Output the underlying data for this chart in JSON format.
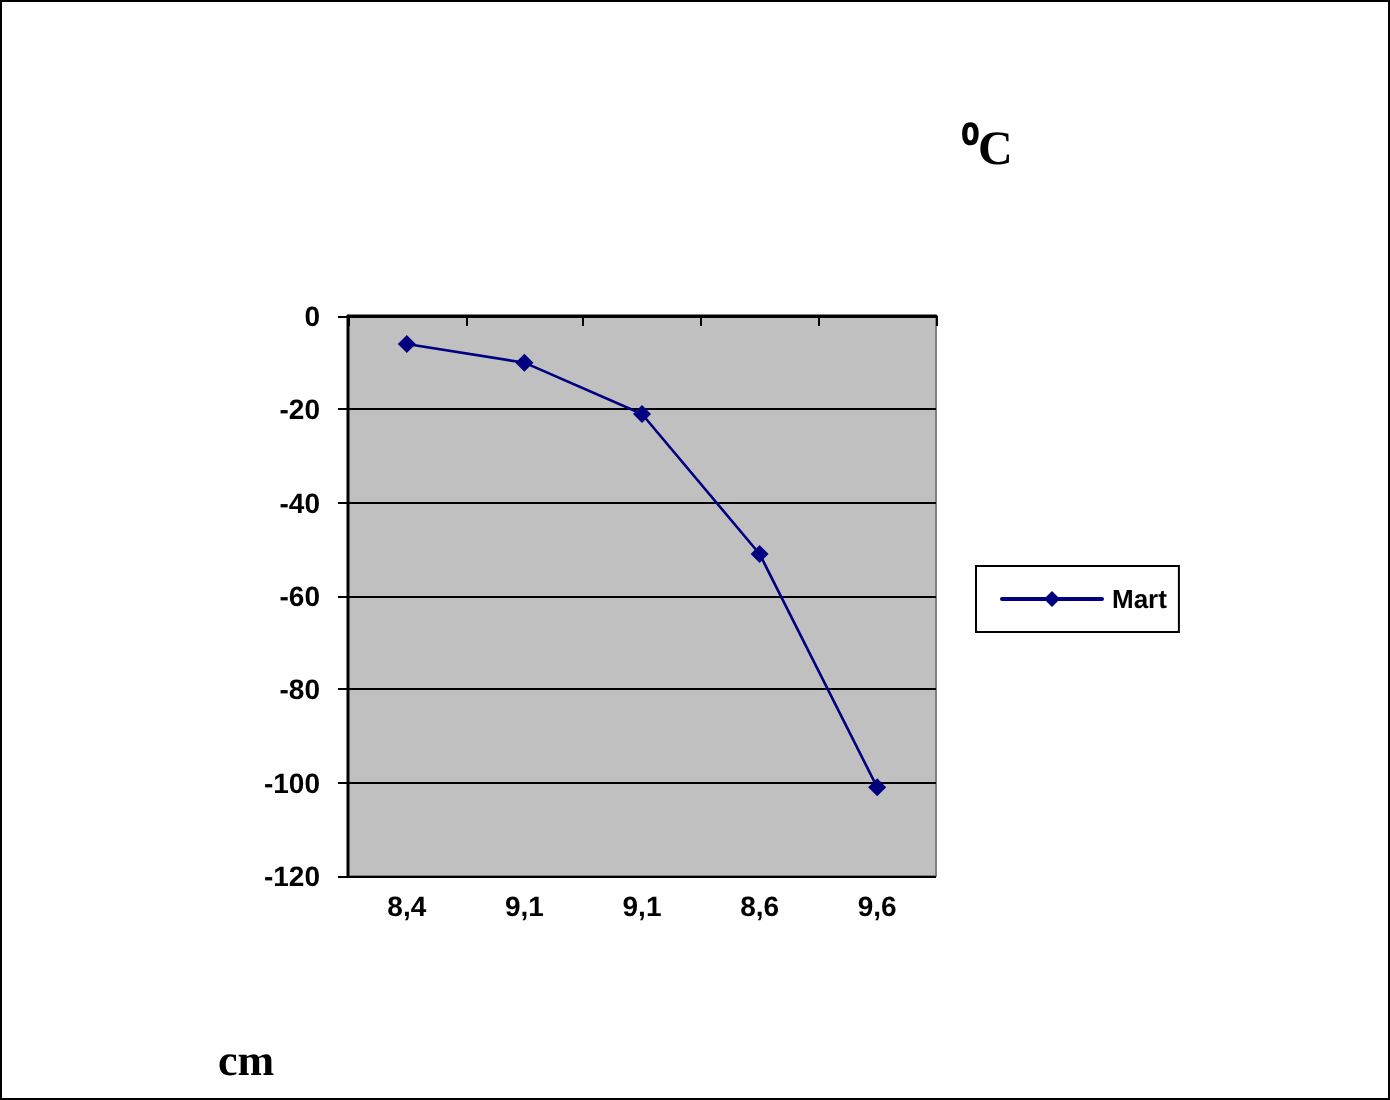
{
  "chart_data": {
    "type": "line",
    "xlabel": "cm",
    "ylabel": "⁰C",
    "categories": [
      "8,4",
      "9,1",
      "9,1",
      "8,6",
      "9,6"
    ],
    "series": [
      {
        "name": "Mart",
        "color": "#000080",
        "values": [
          -6,
          -10,
          -21,
          -51,
          -101
        ]
      }
    ],
    "ylim": [
      -120,
      0
    ],
    "yticks": [
      -120,
      -100,
      -80,
      -60,
      -40,
      -20,
      0
    ],
    "grid": "y",
    "legend": "right",
    "marker": "diamond",
    "line_style": "solid"
  }
}
